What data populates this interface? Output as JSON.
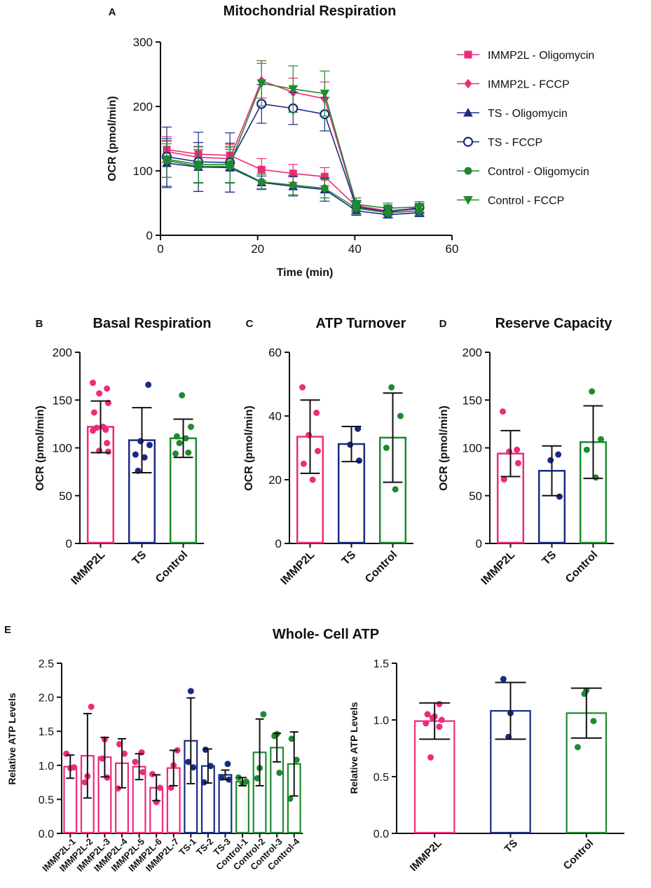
{
  "colors": {
    "immp2l": "#ee2a7b",
    "ts": "#1b2a82",
    "control": "#1e8a2e",
    "axis": "#111111"
  },
  "chart_data": [
    {
      "id": "A",
      "panel_label": "A",
      "type": "line",
      "title": "Mitochondrial Respiration",
      "xlabel": "Time (min)",
      "ylabel": "OCR (pmol/min)",
      "xlim": [
        0,
        60
      ],
      "ylim": [
        0,
        300
      ],
      "xticks": [
        0,
        20,
        40,
        60
      ],
      "yticks": [
        0,
        100,
        200,
        300
      ],
      "x": [
        1.3,
        7.8,
        14.3,
        20.8,
        27.3,
        33.8,
        40.3,
        46.8,
        53.3
      ],
      "series": [
        {
          "name": "IMMP2L - Oligomycin",
          "group": "immp2l",
          "marker": "square",
          "filled": true,
          "values": [
            133,
            126,
            124,
            102,
            96,
            91,
            45,
            37,
            41
          ],
          "errors": [
            20,
            18,
            17,
            17,
            14,
            14,
            8,
            6,
            7
          ]
        },
        {
          "name": "IMMP2L - FCCP",
          "group": "immp2l",
          "marker": "diamond",
          "filled": true,
          "values": [
            130,
            121,
            119,
            240,
            222,
            212,
            46,
            38,
            42
          ],
          "errors": [
            17,
            16,
            17,
            27,
            22,
            26,
            8,
            6,
            7
          ]
        },
        {
          "name": "TS - Oligomycin",
          "group": "ts",
          "marker": "triangle-up",
          "filled": true,
          "values": [
            112,
            106,
            105,
            82,
            76,
            71,
            38,
            32,
            35
          ],
          "errors": [
            38,
            38,
            38,
            10,
            15,
            18,
            7,
            5,
            6
          ]
        },
        {
          "name": "TS - FCCP",
          "group": "ts",
          "marker": "circle",
          "filled": false,
          "values": [
            122,
            114,
            113,
            204,
            197,
            188,
            44,
            36,
            43
          ],
          "errors": [
            46,
            46,
            46,
            30,
            25,
            26,
            10,
            8,
            9
          ]
        },
        {
          "name": "Control - Oligomycin",
          "group": "control",
          "marker": "circle",
          "filled": true,
          "values": [
            116,
            107,
            107,
            83,
            78,
            73,
            42,
            35,
            38
          ],
          "errors": [
            26,
            26,
            26,
            12,
            15,
            15,
            9,
            7,
            7
          ]
        },
        {
          "name": "Control - FCCP",
          "group": "control",
          "marker": "triangle-down",
          "filled": true,
          "values": [
            118,
            110,
            110,
            236,
            227,
            220,
            48,
            42,
            44
          ],
          "errors": [
            28,
            28,
            28,
            35,
            36,
            35,
            10,
            8,
            8
          ]
        }
      ]
    },
    {
      "id": "B",
      "panel_label": "B",
      "type": "bar",
      "title": "Basal Respiration",
      "ylabel": "OCR (pmol/min)",
      "ylim": [
        0,
        200
      ],
      "yticks": [
        0,
        50,
        100,
        150,
        200
      ],
      "categories": [
        "IMMP2L",
        "TS",
        "Control"
      ],
      "groups": [
        "immp2l",
        "ts",
        "control"
      ],
      "values": [
        122,
        108,
        110
      ],
      "errors": [
        27,
        34,
        20
      ],
      "points": [
        [
          168,
          162,
          157,
          147,
          137,
          122,
          121,
          119,
          118,
          105,
          97,
          96
        ],
        [
          166,
          107,
          103,
          93,
          90,
          76
        ],
        [
          155,
          122,
          112,
          110,
          105,
          95,
          94
        ]
      ]
    },
    {
      "id": "C",
      "panel_label": "C",
      "type": "bar",
      "title": "ATP Turnover",
      "ylabel": "OCR (pmol/min)",
      "ylim": [
        0,
        60
      ],
      "yticks": [
        0,
        20,
        40,
        60
      ],
      "categories": [
        "IMMP2L",
        "TS",
        "Control"
      ],
      "groups": [
        "immp2l",
        "ts",
        "control"
      ],
      "values": [
        33.5,
        31.2,
        33.2
      ],
      "errors": [
        11.5,
        5.5,
        14.0
      ],
      "points": [
        [
          49,
          41,
          34,
          29,
          25,
          20
        ],
        [
          36,
          31,
          26
        ],
        [
          49,
          40,
          30,
          17
        ]
      ]
    },
    {
      "id": "D",
      "panel_label": "D",
      "type": "bar",
      "title": "Reserve Capacity",
      "ylabel": "OCR (pmol/min)",
      "ylim": [
        0,
        200
      ],
      "yticks": [
        0,
        50,
        100,
        150,
        200
      ],
      "categories": [
        "IMMP2L",
        "TS",
        "Control"
      ],
      "groups": [
        "immp2l",
        "ts",
        "control"
      ],
      "values": [
        94,
        76,
        106
      ],
      "errors": [
        24,
        26,
        38
      ],
      "points": [
        [
          138,
          98,
          96,
          84,
          67
        ],
        [
          93,
          87,
          49
        ],
        [
          159,
          109,
          98,
          69
        ]
      ]
    },
    {
      "id": "E1",
      "panel_label": "E",
      "type": "bar",
      "title": "Whole- Cell ATP",
      "ylabel": "Relative ATP Levels",
      "ylim": [
        0,
        2.5
      ],
      "yticks": [
        "0.0",
        "0.5",
        "1.0",
        "1.5",
        "2.0",
        "2.5"
      ],
      "categories": [
        "IMMP2L-1",
        "IMMP2L-2",
        "IMMP2L-3",
        "IMMP2L-4",
        "IMMP2L-5",
        "IMMP2L-6",
        "IMMP2L-7",
        "TS-1",
        "TS-2",
        "TS-3",
        "Control-1",
        "Control-2",
        "Control-3",
        "Control-4"
      ],
      "groups": [
        "immp2l",
        "immp2l",
        "immp2l",
        "immp2l",
        "immp2l",
        "immp2l",
        "immp2l",
        "ts",
        "ts",
        "ts",
        "control",
        "control",
        "control",
        "control"
      ],
      "values": [
        0.98,
        1.14,
        1.12,
        1.03,
        0.98,
        0.67,
        0.96,
        1.36,
        0.99,
        0.86,
        0.76,
        1.19,
        1.26,
        1.02
      ],
      "errors": [
        0.17,
        0.62,
        0.29,
        0.36,
        0.19,
        0.19,
        0.26,
        0.63,
        0.25,
        0.07,
        0.06,
        0.49,
        0.21,
        0.47
      ],
      "points": [
        [
          1.17,
          0.97,
          0.96
        ],
        [
          1.86,
          0.84,
          0.75
        ],
        [
          1.38,
          1.1,
          0.82
        ],
        [
          1.31,
          1.17,
          0.66
        ],
        [
          1.19,
          1.05,
          0.9
        ],
        [
          0.87,
          0.67,
          0.46
        ],
        [
          1.22,
          1.0,
          0.67
        ],
        [
          2.09,
          1.05,
          0.97
        ],
        [
          1.23,
          0.99,
          0.75
        ],
        [
          1.02,
          0.82,
          0.79
        ],
        [
          0.82,
          0.76,
          0.74
        ],
        [
          1.75,
          0.96,
          0.81
        ],
        [
          1.46,
          1.43,
          0.89
        ],
        [
          1.39,
          1.08,
          0.51
        ]
      ]
    },
    {
      "id": "E2",
      "type": "bar",
      "ylabel": "Relative ATP Levels",
      "ylim": [
        0,
        1.5
      ],
      "yticks": [
        "0.0",
        "0.5",
        "1.0",
        "1.5"
      ],
      "categories": [
        "IMMP2L",
        "TS",
        "Control"
      ],
      "groups": [
        "immp2l",
        "ts",
        "control"
      ],
      "values": [
        0.99,
        1.08,
        1.06
      ],
      "errors": [
        0.16,
        0.25,
        0.22
      ],
      "points": [
        [
          1.14,
          1.05,
          1.03,
          1.02,
          1.0,
          0.97,
          0.94,
          0.67
        ],
        [
          1.36,
          1.06,
          0.85
        ],
        [
          1.26,
          1.23,
          0.99,
          0.76
        ]
      ]
    }
  ]
}
